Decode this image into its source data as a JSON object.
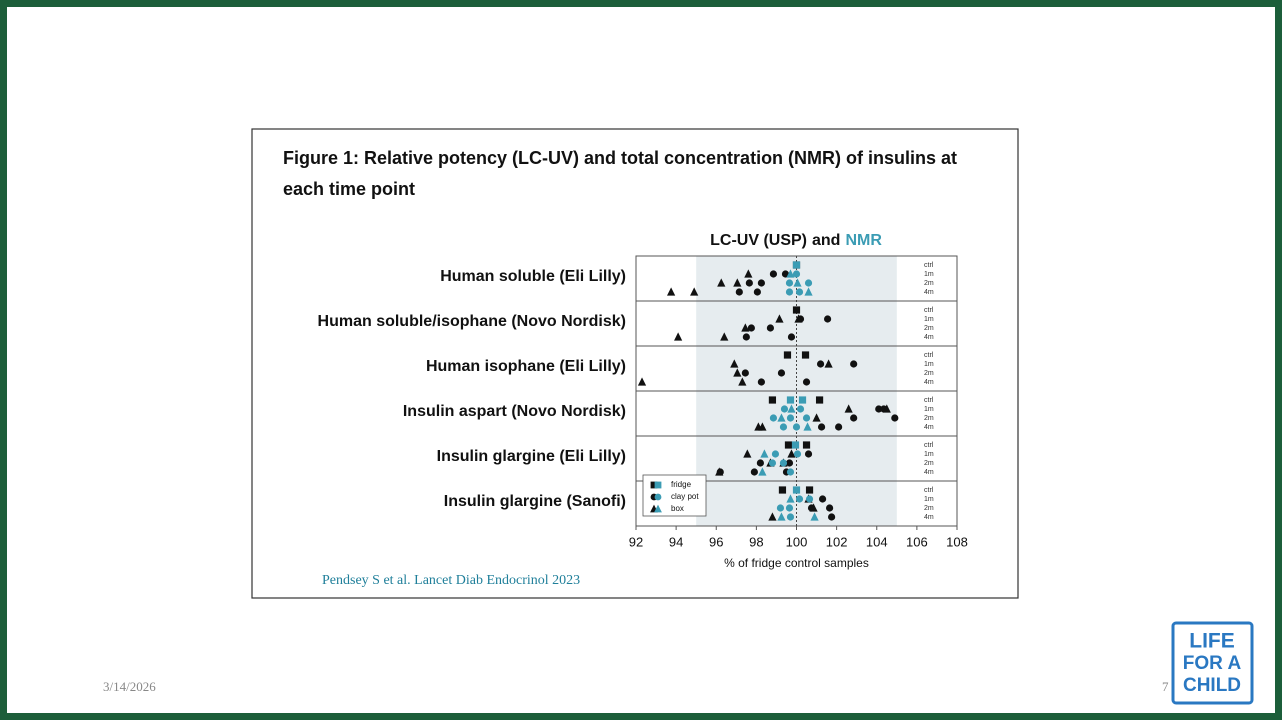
{
  "chart_data": {
    "type": "scatter",
    "title": "Figure 1: Relative potency (LC-UV) and total concentration (NMR) of insulins at each time point",
    "subtitle_join": "and",
    "x_label": "% of fridge control samples",
    "xlim": [
      92,
      108
    ],
    "xticks": [
      92,
      94,
      96,
      98,
      100,
      102,
      104,
      106,
      108
    ],
    "shaded_range": [
      95,
      105
    ],
    "reference_line": 100,
    "groups": [
      "Human soluble (Eli Lilly)",
      "Human soluble/isophane (Novo Nordisk)",
      "Human isophane (Eli Lilly)",
      "Insulin aspart (Novo Nordisk)",
      "Insulin glargine (Eli Lilly)",
      "Insulin glargine (Sanofi)"
    ],
    "timepoints": [
      "ctrl",
      "1m",
      "2m",
      "4m"
    ],
    "markers": [
      {
        "name": "fridge",
        "shape": "square"
      },
      {
        "name": "clay pot",
        "shape": "circle"
      },
      {
        "name": "box",
        "shape": "triangle"
      }
    ],
    "methods": [
      {
        "name": "LC-UV (USP)",
        "color": "#111111",
        "values": [
          [
            [
              [
                100
              ],
              [],
              [],
              []
            ],
            [
              [
                100
              ],
              [],
              [],
              []
            ],
            [
              [
                99.55,
                100.45
              ],
              [],
              [],
              []
            ],
            [
              [
                98.8,
                101.15
              ],
              [],
              [],
              []
            ],
            [
              [
                99.6,
                100.5
              ],
              [],
              [],
              []
            ],
            [
              [
                99.3,
                100.65
              ],
              [],
              [],
              []
            ]
          ],
          [
            [
              [],
              [
                98.85,
                99.45
              ],
              [
                97.65,
                98.25
              ],
              [
                97.15,
                98.05
              ]
            ],
            [
              [],
              [
                100.2,
                101.55
              ],
              [
                97.75,
                98.7
              ],
              [
                97.5,
                99.75
              ]
            ],
            [
              [],
              [
                101.2,
                102.85
              ],
              [
                97.45,
                99.25
              ],
              [
                98.25,
                100.5
              ]
            ],
            [
              [],
              [
                104.1,
                104.35
              ],
              [
                102.85,
                104.9
              ],
              [
                101.25,
                102.1
              ]
            ],
            [
              [],
              [
                100.6
              ],
              [
                98.2,
                99.65
              ],
              [
                96.2,
                97.9,
                99.5
              ]
            ],
            [
              [],
              [
                101.3
              ],
              [
                100.75,
                101.65
              ],
              [
                101.75
              ]
            ]
          ],
          [
            [
              [],
              [
                97.6
              ],
              [
                96.25,
                97.05
              ],
              [
                93.75,
                94.9
              ]
            ],
            [
              [],
              [
                99.15,
                100.1
              ],
              [
                97.45
              ],
              [
                94.1,
                96.4
              ]
            ],
            [
              [],
              [
                96.9,
                101.6
              ],
              [
                97.05
              ],
              [
                92.3,
                97.3
              ]
            ],
            [
              [],
              [
                102.6,
                104.5
              ],
              [
                101
              ],
              [
                98.1,
                98.3
              ]
            ],
            [
              [],
              [
                97.55,
                99.75
              ],
              [
                98.7,
                99.35
              ],
              [
                96.15
              ]
            ],
            [
              [],
              [
                100.6
              ],
              [
                100.85
              ],
              [
                98.8
              ]
            ]
          ]
        ]
      },
      {
        "name": "NMR",
        "color": "#3b9cb4",
        "values": [
          [
            [
              [
                100
              ],
              [],
              [],
              []
            ],
            [
              [],
              [],
              [],
              []
            ],
            [
              [],
              [],
              [],
              []
            ],
            [
              [
                99.7,
                100.3
              ],
              [],
              [],
              []
            ],
            [
              [
                99.95
              ],
              [],
              [],
              []
            ],
            [
              [
                100
              ],
              [],
              [],
              []
            ]
          ],
          [
            [
              [],
              [
                100
              ],
              [
                99.65,
                100.6
              ],
              [
                99.65,
                100.15
              ]
            ],
            [
              [],
              [],
              [],
              []
            ],
            [
              [],
              [],
              [],
              []
            ],
            [
              [],
              [
                99.4,
                100.2
              ],
              [
                98.85,
                99.7,
                100.5
              ],
              [
                99.35,
                100
              ]
            ],
            [
              [],
              [
                98.95,
                100.05
              ],
              [
                98.8,
                99.35
              ],
              [
                99.7
              ]
            ],
            [
              [],
              [
                100.15,
                100.65
              ],
              [
                99.2,
                99.65
              ],
              [
                99.7
              ]
            ]
          ],
          [
            [
              [],
              [
                99.7
              ],
              [
                100.05
              ],
              [
                100.6
              ]
            ],
            [
              [],
              [],
              [],
              []
            ],
            [
              [],
              [],
              [],
              []
            ],
            [
              [],
              [
                99.75
              ],
              [
                99.25
              ],
              [
                100.55
              ]
            ],
            [
              [],
              [
                98.4
              ],
              [],
              [
                98.3
              ]
            ],
            [
              [],
              [
                99.7
              ],
              [],
              [
                99.25,
                100.9
              ]
            ]
          ]
        ]
      }
    ]
  },
  "citation": "Pendsey S et al. Lancet Diab Endocrinol 2023",
  "footer": {
    "date": "3/14/2026",
    "slide_number": "7"
  },
  "logo": [
    "LIFE",
    "FOR A",
    "CHILD"
  ]
}
